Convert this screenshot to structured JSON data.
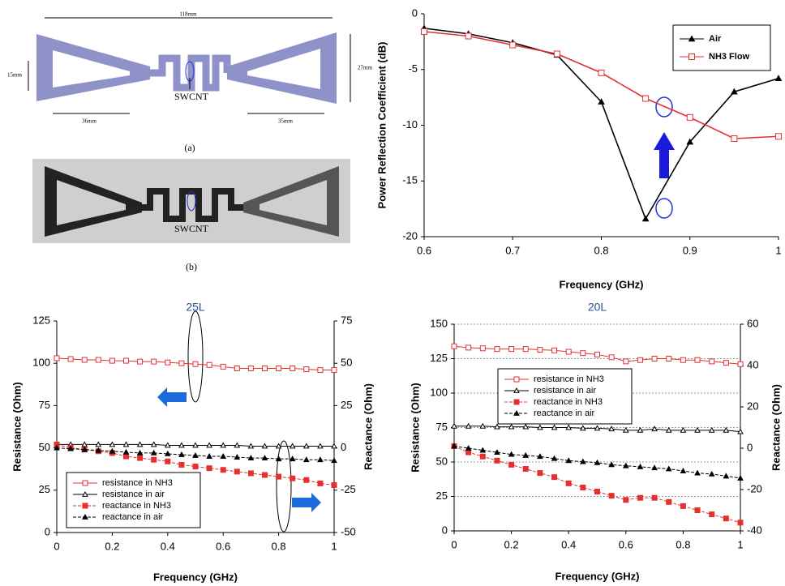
{
  "antenna_a": {
    "dims": [
      "118mm",
      "15mm",
      "27mm",
      "36mm",
      "35mm"
    ],
    "label": "SWCNT",
    "caption": "(a)"
  },
  "antenna_b": {
    "label": "SWCNT",
    "caption": "(b)"
  },
  "chart_data": [
    {
      "type": "line",
      "x_label": "Frequency (GHz)",
      "y_label": "Power Reflection Coefficient (dB)",
      "x": [
        0.6,
        0.65,
        0.7,
        0.75,
        0.8,
        0.85,
        0.9,
        0.95,
        1
      ],
      "xlim": [
        0.6,
        1
      ],
      "xticks": [
        0.6,
        0.7,
        0.8,
        0.9,
        1
      ],
      "ylim": [
        -20,
        0
      ],
      "yticks": [
        0,
        -5,
        -10,
        -15,
        -20
      ],
      "grid": false,
      "legend": "upper right",
      "series": [
        {
          "name": "Air",
          "color": "#000000",
          "marker": "triangle",
          "values": [
            -1.3,
            -1.8,
            -2.6,
            -3.7,
            -7.9,
            -18.4,
            -11.5,
            -7.0,
            -5.8
          ]
        },
        {
          "name": "NH3 Flow",
          "color": "#e53030",
          "marker": "square-open",
          "values": [
            -1.6,
            -2.0,
            -2.8,
            -3.6,
            -5.3,
            -7.6,
            -9.3,
            -11.2,
            -11.0
          ]
        }
      ]
    },
    {
      "type": "line",
      "title": "25L",
      "x_label": "Frequency (GHz)",
      "y_label": "Resistance (Ohm)",
      "y2_label": "Reactance (Ohm)",
      "x": [
        0,
        0.05,
        0.1,
        0.15,
        0.2,
        0.25,
        0.3,
        0.35,
        0.4,
        0.45,
        0.5,
        0.55,
        0.6,
        0.65,
        0.7,
        0.75,
        0.8,
        0.85,
        0.9,
        0.95,
        1
      ],
      "xlim": [
        0,
        1
      ],
      "xticks": [
        0,
        0.2,
        0.4,
        0.6,
        0.8,
        1
      ],
      "ylim": [
        0,
        125
      ],
      "yticks": [
        0,
        25,
        50,
        75,
        100,
        125
      ],
      "y2lim": [
        -50,
        75
      ],
      "y2ticks": [
        -50,
        -25,
        0,
        25,
        50,
        75
      ],
      "grid": false,
      "legend": "lower left",
      "series": [
        {
          "name": "resistance in NH3",
          "color": "#e53030",
          "marker": "square-open",
          "values": [
            103,
            102.5,
            102,
            102,
            101.5,
            101.5,
            101,
            101,
            100.5,
            100,
            99.5,
            99,
            98,
            97,
            97,
            97,
            97,
            97,
            96.5,
            96,
            96
          ]
        },
        {
          "name": "resistance in air",
          "color": "#000000",
          "marker": "triangle-open",
          "values": [
            52,
            52,
            52,
            52,
            52,
            52,
            52,
            52,
            51.5,
            51.5,
            51.5,
            51.5,
            51.5,
            51.5,
            51,
            51,
            51,
            51,
            51,
            51,
            51
          ]
        },
        {
          "name": "reactance in NH3",
          "color": "#e53030",
          "marker": "square",
          "dashed": true,
          "axis": "y2",
          "values": [
            2,
            0,
            -1,
            -2,
            -3,
            -5,
            -6,
            -7,
            -8,
            -10,
            -11,
            -12,
            -13,
            -14,
            -15,
            -16,
            -17,
            -18,
            -19,
            -21,
            -22
          ]
        },
        {
          "name": "reactance in air",
          "color": "#000000",
          "marker": "triangle",
          "dashed": true,
          "axis": "y2",
          "values": [
            0,
            -0.5,
            -1,
            -1.5,
            -2,
            -2.5,
            -3,
            -3,
            -3.5,
            -4,
            -4.5,
            -5,
            -5,
            -5.5,
            -6,
            -6,
            -6.5,
            -6.5,
            -7,
            -7,
            -7.5
          ]
        }
      ]
    },
    {
      "type": "line",
      "title": "20L",
      "x_label": "Frequency (GHz)",
      "y_label": "Resistance (Ohm)",
      "y2_label": "Reactance (Ohm)",
      "x": [
        0,
        0.05,
        0.1,
        0.15,
        0.2,
        0.25,
        0.3,
        0.35,
        0.4,
        0.45,
        0.5,
        0.55,
        0.6,
        0.65,
        0.7,
        0.75,
        0.8,
        0.85,
        0.9,
        0.95,
        1
      ],
      "xlim": [
        0,
        1
      ],
      "xticks": [
        0,
        0.2,
        0.4,
        0.6,
        0.8,
        1
      ],
      "ylim": [
        0,
        150
      ],
      "yticks": [
        0,
        25,
        50,
        75,
        100,
        125,
        150
      ],
      "y2lim": [
        -40,
        60
      ],
      "y2ticks": [
        -40,
        -20,
        0,
        20,
        40,
        60
      ],
      "grid": true,
      "legend": "upper center",
      "series": [
        {
          "name": "resistance in NH3",
          "color": "#e53030",
          "marker": "square-open",
          "values": [
            134,
            133,
            132.5,
            132,
            132,
            132,
            131.5,
            131,
            130,
            129,
            128,
            126,
            123,
            124,
            125,
            125,
            124,
            124,
            123,
            122,
            121
          ]
        },
        {
          "name": "resistance in air",
          "color": "#000000",
          "marker": "triangle-open",
          "values": [
            76,
            76,
            76,
            75.5,
            75.5,
            75.5,
            75,
            75,
            75,
            74.5,
            74.5,
            74,
            73,
            73,
            74,
            73,
            73,
            73,
            73,
            73,
            72
          ]
        },
        {
          "name": "reactance in NH3",
          "color": "#e53030",
          "marker": "square",
          "dashed": true,
          "axis": "y2",
          "values": [
            1,
            -2,
            -4,
            -6,
            -8,
            -10,
            -12,
            -14,
            -17,
            -19,
            -21,
            -23,
            -25,
            -24,
            -24,
            -26,
            -28,
            -30,
            -32,
            -34,
            -36
          ]
        },
        {
          "name": "reactance in air",
          "color": "#000000",
          "marker": "triangle",
          "dashed": true,
          "axis": "y2",
          "values": [
            1,
            0,
            -1,
            -2,
            -3,
            -3.5,
            -4,
            -5,
            -6,
            -6.5,
            -7,
            -8,
            -8.5,
            -9,
            -9.5,
            -10,
            -11,
            -12,
            -12.5,
            -13.5,
            -14.5
          ]
        }
      ]
    }
  ]
}
